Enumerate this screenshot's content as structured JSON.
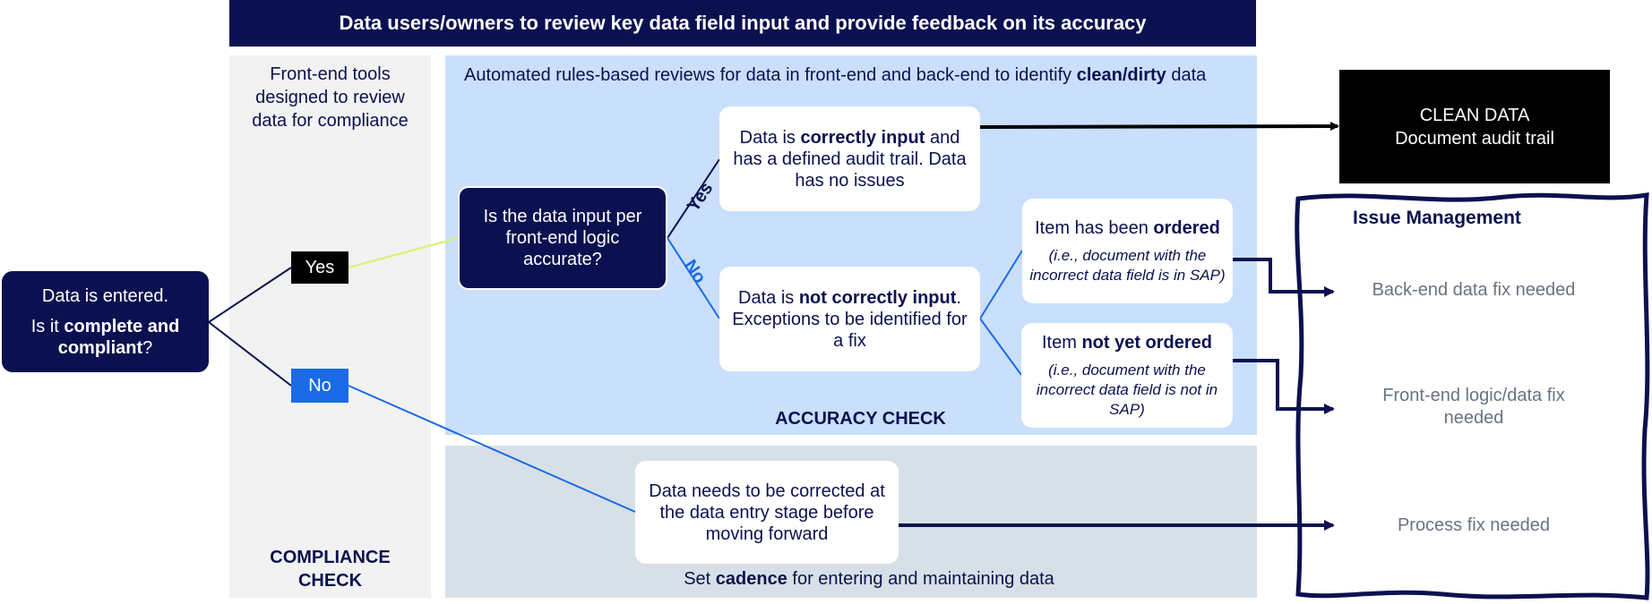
{
  "banner": "Data users/owners to review key data field input and provide feedback on its accuracy",
  "compliance_column": {
    "intro": "Front-end tools designed to review data for compliance",
    "label": "COMPLIANCE CHECK"
  },
  "accuracy_panel": {
    "intro_prefix": "Automated rules-based reviews for data in front-end and back-end to identify ",
    "intro_bold": "clean/dirty",
    "intro_suffix": " data",
    "label": "ACCURACY CHECK"
  },
  "cadence_panel": {
    "prefix": "Set ",
    "bold": "cadence",
    "suffix": " for entering and maintaining data"
  },
  "entered_box": {
    "line1": "Data is entered.",
    "line2_prefix": "Is it ",
    "line2_bold": "complete and compliant",
    "line2_suffix": "?"
  },
  "compliance_yes": "Yes",
  "compliance_no": "No",
  "accuracy_question": "Is the data input per front-end logic accurate?",
  "branch_yes": "Yes",
  "branch_no": "No",
  "correct_card": {
    "prefix": "Data is ",
    "bold": "correctly input",
    "suffix": " and has a defined audit trail. Data has no issues"
  },
  "incorrect_card": {
    "prefix": "Data is ",
    "bold": "not correctly input",
    "suffix": ". Exceptions to be identified for a fix"
  },
  "ordered_card": {
    "prefix": "Item has been ",
    "bold": "ordered",
    "note": "(i.e., document with the incorrect data field is in SAP)"
  },
  "not_ordered_card": {
    "prefix": "Item ",
    "bold": "not yet ordered",
    "note": "(i.e., document with the incorrect data field  is not in SAP)"
  },
  "correction_card": "Data needs to be corrected at the data entry stage before moving forward",
  "clean_data": {
    "title": "CLEAN DATA",
    "subtitle": "Document audit trail"
  },
  "issue_management": {
    "title": "Issue Management",
    "items": [
      "Back-end data fix needed",
      "Front-end logic/data fix needed",
      "Process fix needed"
    ]
  },
  "colors": {
    "navy": "#0b1150",
    "blue": "#1a6be5",
    "accuracy_bg": "#c9dffb",
    "cadence_bg": "#d8e0e7",
    "compliance_bg": "#f2f2f2",
    "yes_line": "#d9f26b"
  }
}
